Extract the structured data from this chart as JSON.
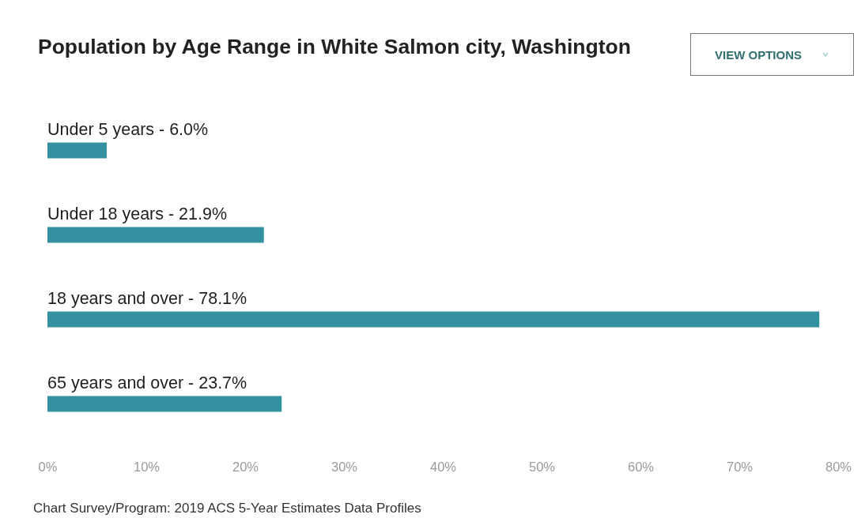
{
  "chart_data": {
    "type": "bar",
    "orientation": "horizontal",
    "title": "Population by Age Range in White Salmon city, Washington",
    "categories": [
      "Under 5 years - 6.0%",
      "Under 18 years - 21.9%",
      "18 years and over - 78.1%",
      "65 years and over - 23.7%"
    ],
    "values": [
      6.0,
      21.9,
      78.1,
      23.7
    ],
    "color": "#3492a0",
    "xlim": [
      0,
      80
    ],
    "xticks": [
      {
        "value": 0,
        "label": "0%"
      },
      {
        "value": 10,
        "label": "10%"
      },
      {
        "value": 20,
        "label": "20%"
      },
      {
        "value": 30,
        "label": "30%"
      },
      {
        "value": 40,
        "label": "40%"
      },
      {
        "value": 50,
        "label": "50%"
      },
      {
        "value": 60,
        "label": "60%"
      },
      {
        "value": 70,
        "label": "70%"
      },
      {
        "value": 80,
        "label": "80%"
      }
    ],
    "annotations": [
      "VIEW OPTIONS",
      "Chart Survey/Program: 2019 ACS 5-Year Estimates Data Profiles"
    ]
  }
}
